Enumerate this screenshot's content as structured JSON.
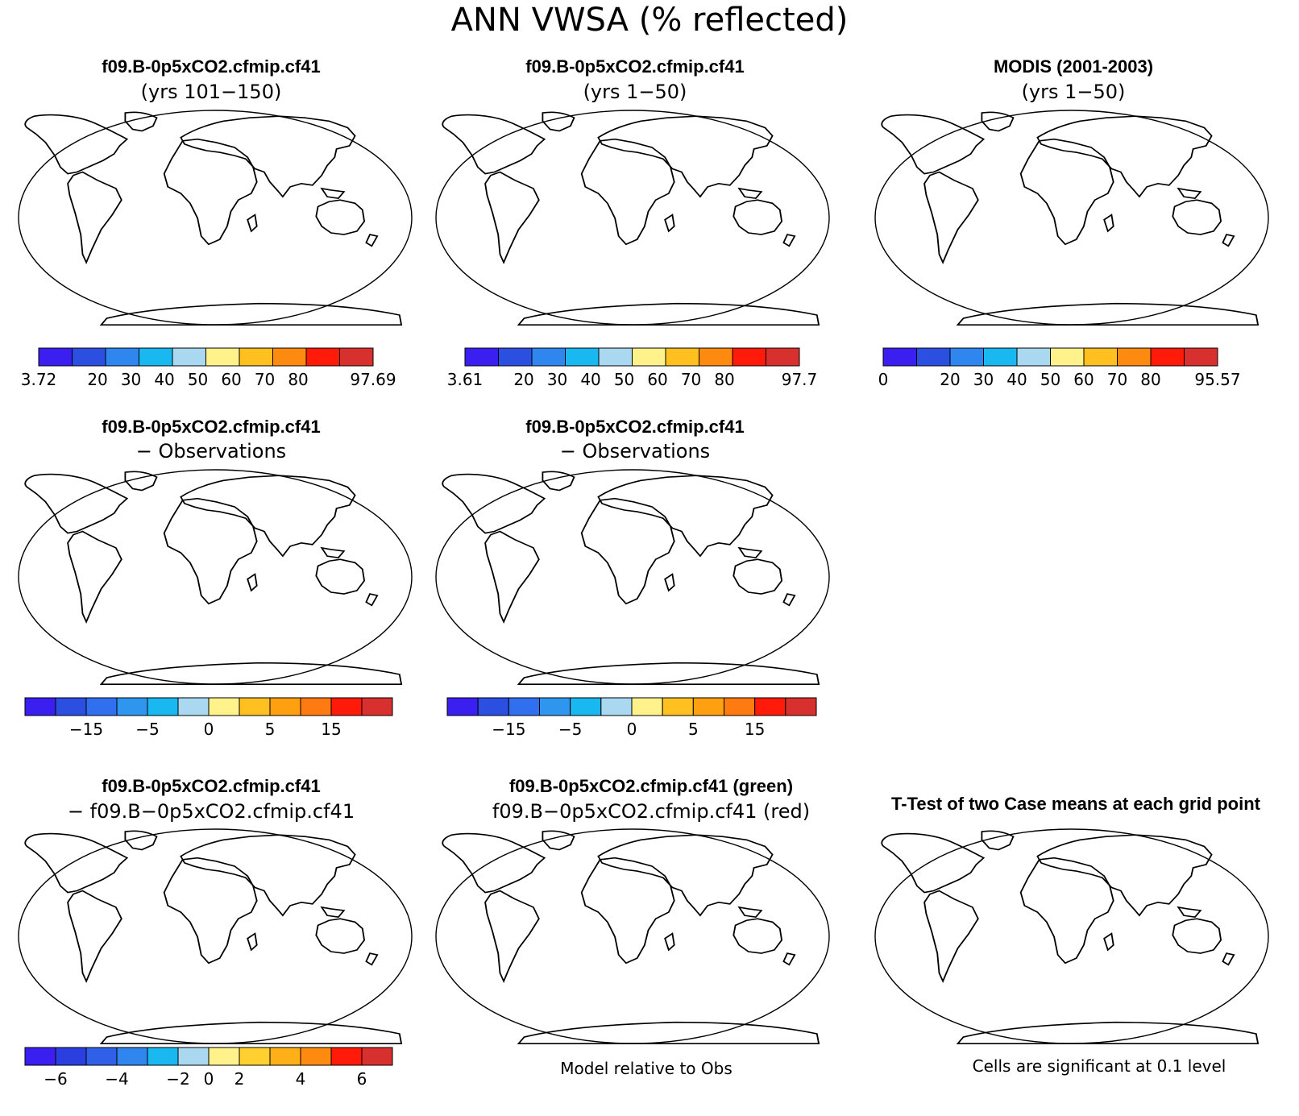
{
  "main_title": "ANN VWSA (% reflected)",
  "panels": [
    {
      "title1": "f09.B-0p5xCO2.cfmip.cf41",
      "title2": "(yrs 101−150)",
      "mode": "abs",
      "seed": 1
    },
    {
      "title1": "f09.B-0p5xCO2.cfmip.cf41",
      "title2": "(yrs 1−50)",
      "mode": "abs",
      "seed": 2
    },
    {
      "title1": "MODIS (2001-2003)",
      "title2": "(yrs 1−50)",
      "mode": "abs_obs",
      "seed": 3
    },
    {
      "title1": "f09.B-0p5xCO2.cfmip.cf41",
      "title2": "− Observations",
      "mode": "diff_obs",
      "seed": 4
    },
    {
      "title1": "f09.B-0p5xCO2.cfmip.cf41",
      "title2": "− Observations",
      "mode": "diff_obs",
      "seed": 5
    },
    {
      "title1": "f09.B-0p5xCO2.cfmip.cf41",
      "title2": "− f09.B−0p5xCO2.cfmip.cf41",
      "mode": "diff_case",
      "seed": 6
    },
    {
      "title1": "f09.B-0p5xCO2.cfmip.cf41 (green)",
      "title2": "f09.B−0p5xCO2.cfmip.cf41 (red)",
      "mode": "redgreen",
      "seed": 7
    },
    {
      "title1": "T-Test of two Case means at each grid point",
      "title2": "",
      "mode": "ttest",
      "seed": 8
    }
  ],
  "colorbars": [
    {
      "colors": [
        "#3a1ff0",
        "#2b4fe0",
        "#2f86ef",
        "#1ab8f0",
        "#a9d8f0",
        "#fff28a",
        "#ffc020",
        "#ff8a10",
        "#ff1a0a",
        "#d8302e"
      ],
      "ticks": [
        "3.72",
        "20",
        "30",
        "40",
        "50",
        "60",
        "70",
        "80",
        "97.69"
      ]
    },
    {
      "colors": [
        "#3a1ff0",
        "#2b4fe0",
        "#2f86ef",
        "#1ab8f0",
        "#a9d8f0",
        "#fff28a",
        "#ffc020",
        "#ff8a10",
        "#ff1a0a",
        "#d8302e"
      ],
      "ticks": [
        "3.61",
        "20",
        "30",
        "40",
        "50",
        "60",
        "70",
        "80",
        "97.7"
      ]
    },
    {
      "colors": [
        "#3a1ff0",
        "#2b4fe0",
        "#2f86ef",
        "#1ab8f0",
        "#a9d8f0",
        "#fff28a",
        "#ffc020",
        "#ff8a10",
        "#ff1a0a",
        "#d8302e"
      ],
      "ticks": [
        "0",
        "20",
        "30",
        "40",
        "50",
        "60",
        "70",
        "80",
        "95.57"
      ]
    },
    {
      "colors": [
        "#3a1ff0",
        "#2b4fe0",
        "#2f6ff0",
        "#2f96ef",
        "#1ab8f0",
        "#a9d8f0",
        "#fff28a",
        "#ffc020",
        "#ffa010",
        "#ff7a10",
        "#ff1a0a",
        "#d8302e"
      ],
      "ticks": [
        "−15",
        "−5",
        "0",
        "5",
        "15"
      ]
    },
    {
      "colors": [
        "#3a1ff0",
        "#2b4fe0",
        "#2f6ff0",
        "#2f96ef",
        "#1ab8f0",
        "#a9d8f0",
        "#fff28a",
        "#ffc020",
        "#ffa010",
        "#ff7a10",
        "#ff1a0a",
        "#d8302e"
      ],
      "ticks": [
        "−15",
        "−5",
        "0",
        "5",
        "15"
      ]
    },
    {
      "colors": [
        "#3a1ff0",
        "#2b3fe0",
        "#3060e8",
        "#2f86ef",
        "#1ab8f0",
        "#a9d8f0",
        "#fff28a",
        "#ffd030",
        "#ffb018",
        "#ff8a10",
        "#ff1a0a",
        "#d8302e"
      ],
      "ticks": [
        "−6",
        "−4",
        "−2",
        "0",
        "2",
        "4",
        "6"
      ]
    }
  ],
  "footnotes": {
    "middle": "Model relative to Obs",
    "right": "Cells are significant at 0.1 level"
  }
}
